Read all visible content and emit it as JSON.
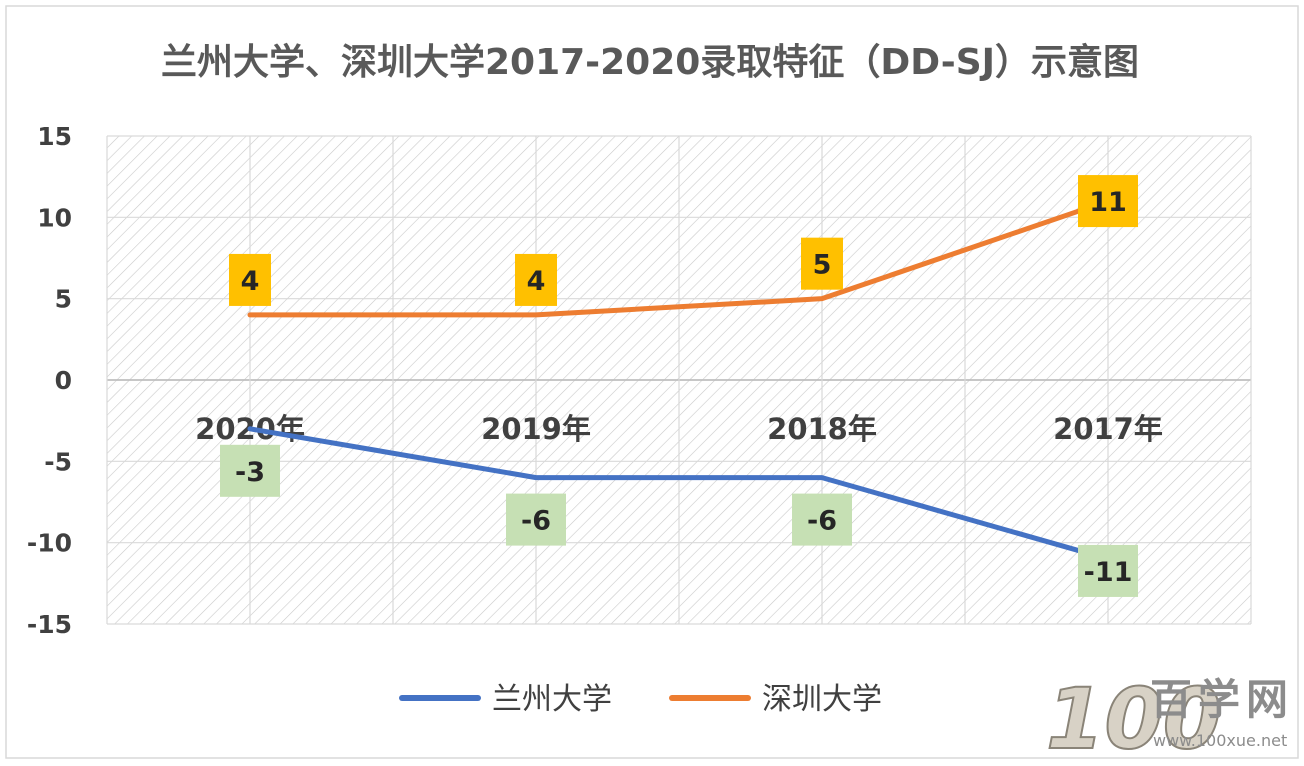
{
  "chart_data": {
    "type": "line",
    "title": "兰州大学、深圳大学2017-2020录取特征（DD-SJ）示意图",
    "categories": [
      "2020年",
      "2019年",
      "2018年",
      "2017年"
    ],
    "ylim": [
      -15,
      15
    ],
    "yticks": [
      15,
      10,
      5,
      0,
      -5,
      -10,
      -15
    ],
    "grid": true,
    "legend_position": "bottom",
    "series": [
      {
        "name": "兰州大学",
        "values": [
          -3,
          -6,
          -6,
          -11
        ],
        "color": "#4472c4",
        "label_color": "#c6e0b4"
      },
      {
        "name": "深圳大学",
        "values": [
          4,
          4,
          5,
          11
        ],
        "color": "#ed7d31",
        "label_color": "#ffc000"
      }
    ]
  },
  "watermark": {
    "digits": "100",
    "name": "百学网",
    "url": "www.100xue.net"
  }
}
